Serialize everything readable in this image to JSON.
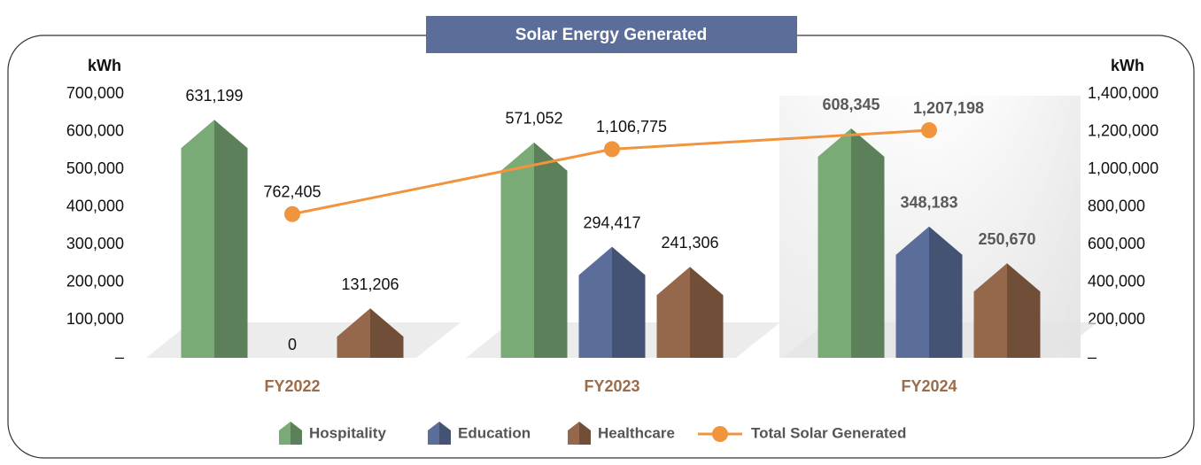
{
  "chart_data": {
    "type": "bar",
    "title": "Solar Energy Generated",
    "ylabel": "kWh",
    "y2label": "kWh",
    "categories": [
      "FY2022",
      "FY2023",
      "FY2024"
    ],
    "series": [
      {
        "name": "Hospitality",
        "color": "#7aab76",
        "values": [
          631199,
          571052,
          608345
        ],
        "value_labels": [
          "631,199",
          "571,052",
          "608,345"
        ]
      },
      {
        "name": "Education",
        "color": "#5b6d99",
        "values": [
          0,
          294417,
          348183
        ],
        "value_labels": [
          "0",
          "294,417",
          "348,183"
        ]
      },
      {
        "name": "Healthcare",
        "color": "#96684b",
        "values": [
          131206,
          241306,
          250670
        ],
        "value_labels": [
          "131,206",
          "241,306",
          "250,670"
        ]
      },
      {
        "name": "Total Solar Generated",
        "type": "line",
        "axis": "y2",
        "color": "#f0943e",
        "values": [
          762405,
          1106775,
          1207198
        ],
        "value_labels": [
          "762,405",
          "1,106,775",
          "1,207,198"
        ]
      }
    ],
    "ylim": [
      0,
      700000
    ],
    "yticks": [
      {
        "value": 0,
        "label": "–"
      },
      {
        "value": 100000,
        "label": "100,000"
      },
      {
        "value": 200000,
        "label": "200,000"
      },
      {
        "value": 300000,
        "label": "300,000"
      },
      {
        "value": 400000,
        "label": "400,000"
      },
      {
        "value": 500000,
        "label": "500,000"
      },
      {
        "value": 600000,
        "label": "600,000"
      },
      {
        "value": 700000,
        "label": "700,000"
      }
    ],
    "y2lim": [
      0,
      1400000
    ],
    "y2ticks": [
      {
        "value": 0,
        "label": "–"
      },
      {
        "value": 200000,
        "label": "200,000"
      },
      {
        "value": 400000,
        "label": "400,000"
      },
      {
        "value": 600000,
        "label": "600,000"
      },
      {
        "value": 800000,
        "label": "800,000"
      },
      {
        "value": 1000000,
        "label": "1,000,000"
      },
      {
        "value": 1200000,
        "label": "1,200,000"
      },
      {
        "value": 1400000,
        "label": "1,400,000"
      }
    ],
    "category_color": "#9c6b48"
  }
}
